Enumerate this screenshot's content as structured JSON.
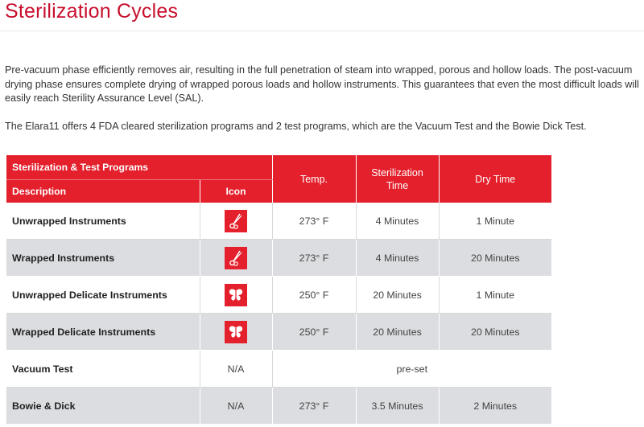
{
  "page": {
    "title": "Sterilization Cycles",
    "paragraph1": "Pre-vacuum phase efficiently removes air, resulting in the full penetration of steam into wrapped, porous and hollow loads. The post-vacuum drying phase ensures complete drying of wrapped porous loads and hollow instruments. This guarantees that even the most difficult loads will easily reach Sterility Assurance Level (SAL).",
    "paragraph2": "The Elara11 offers 4 FDA cleared sterilization programs and 2 test programs, which are the Vacuum Test and the Bowie Dick Test."
  },
  "table": {
    "header_group": "Sterilization & Test Programs",
    "col_description": "Description",
    "col_icon": "Icon",
    "col_temp": "Temp.",
    "col_time_line1": "Sterilization",
    "col_time_line2": "Time",
    "col_dry": "Dry Time",
    "rows": [
      {
        "description": "Unwrapped Instruments",
        "icon": "scissors-icon",
        "temp": "273° F",
        "time": "4 Minutes",
        "dry": "1 Minute"
      },
      {
        "description": "Wrapped Instruments",
        "icon": "scissors-icon",
        "temp": "273° F",
        "time": "4 Minutes",
        "dry": "20 Minutes"
      },
      {
        "description": "Unwrapped Delicate Instruments",
        "icon": "butterfly-icon",
        "temp": "250° F",
        "time": "20 Minutes",
        "dry": "1 Minute"
      },
      {
        "description": "Wrapped Delicate Instruments",
        "icon": "butterfly-icon",
        "temp": "250° F",
        "time": "20 Minutes",
        "dry": "20 Minutes"
      },
      {
        "description": "Vacuum Test",
        "icon_text": "N/A",
        "merged": "pre-set"
      },
      {
        "description": "Bowie & Dick",
        "icon_text": "N/A",
        "temp": "273° F",
        "time": "3.5 Minutes",
        "dry": "2 Minutes"
      }
    ]
  },
  "colors": {
    "accent": "#c8102e",
    "header_bg": "#e3202c",
    "row_alt": "#dcdde0"
  }
}
